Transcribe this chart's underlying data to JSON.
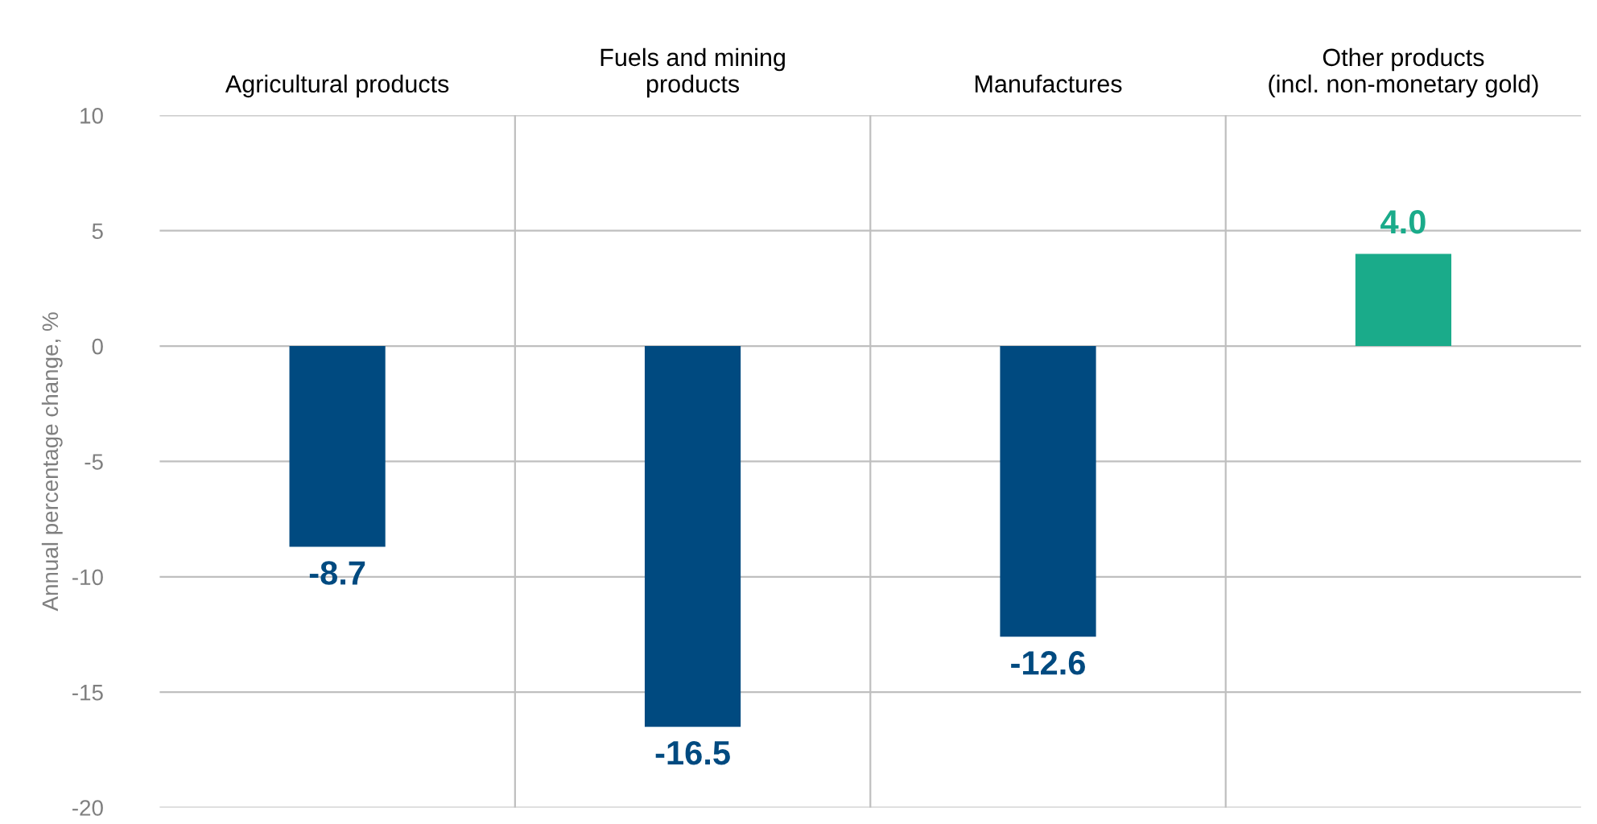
{
  "chart_data": {
    "type": "bar",
    "ylabel": "Annual percentage change, %",
    "categories": [
      "Agricultural products",
      "Fuels and mining\nproducts",
      "Manufactures",
      "Other products\n(incl. non-monetary gold)"
    ],
    "values": [
      -8.7,
      -16.5,
      -12.6,
      4.0
    ],
    "colors": [
      "#004a80",
      "#004a80",
      "#004a80",
      "#1aab8a"
    ],
    "ylim": [
      -20,
      10
    ],
    "yticks": [
      -20,
      -15,
      -10,
      -5,
      0,
      5,
      10
    ],
    "grid": true,
    "value_labels": [
      "-8.7",
      "-16.5",
      "-12.6",
      "4.0"
    ]
  }
}
